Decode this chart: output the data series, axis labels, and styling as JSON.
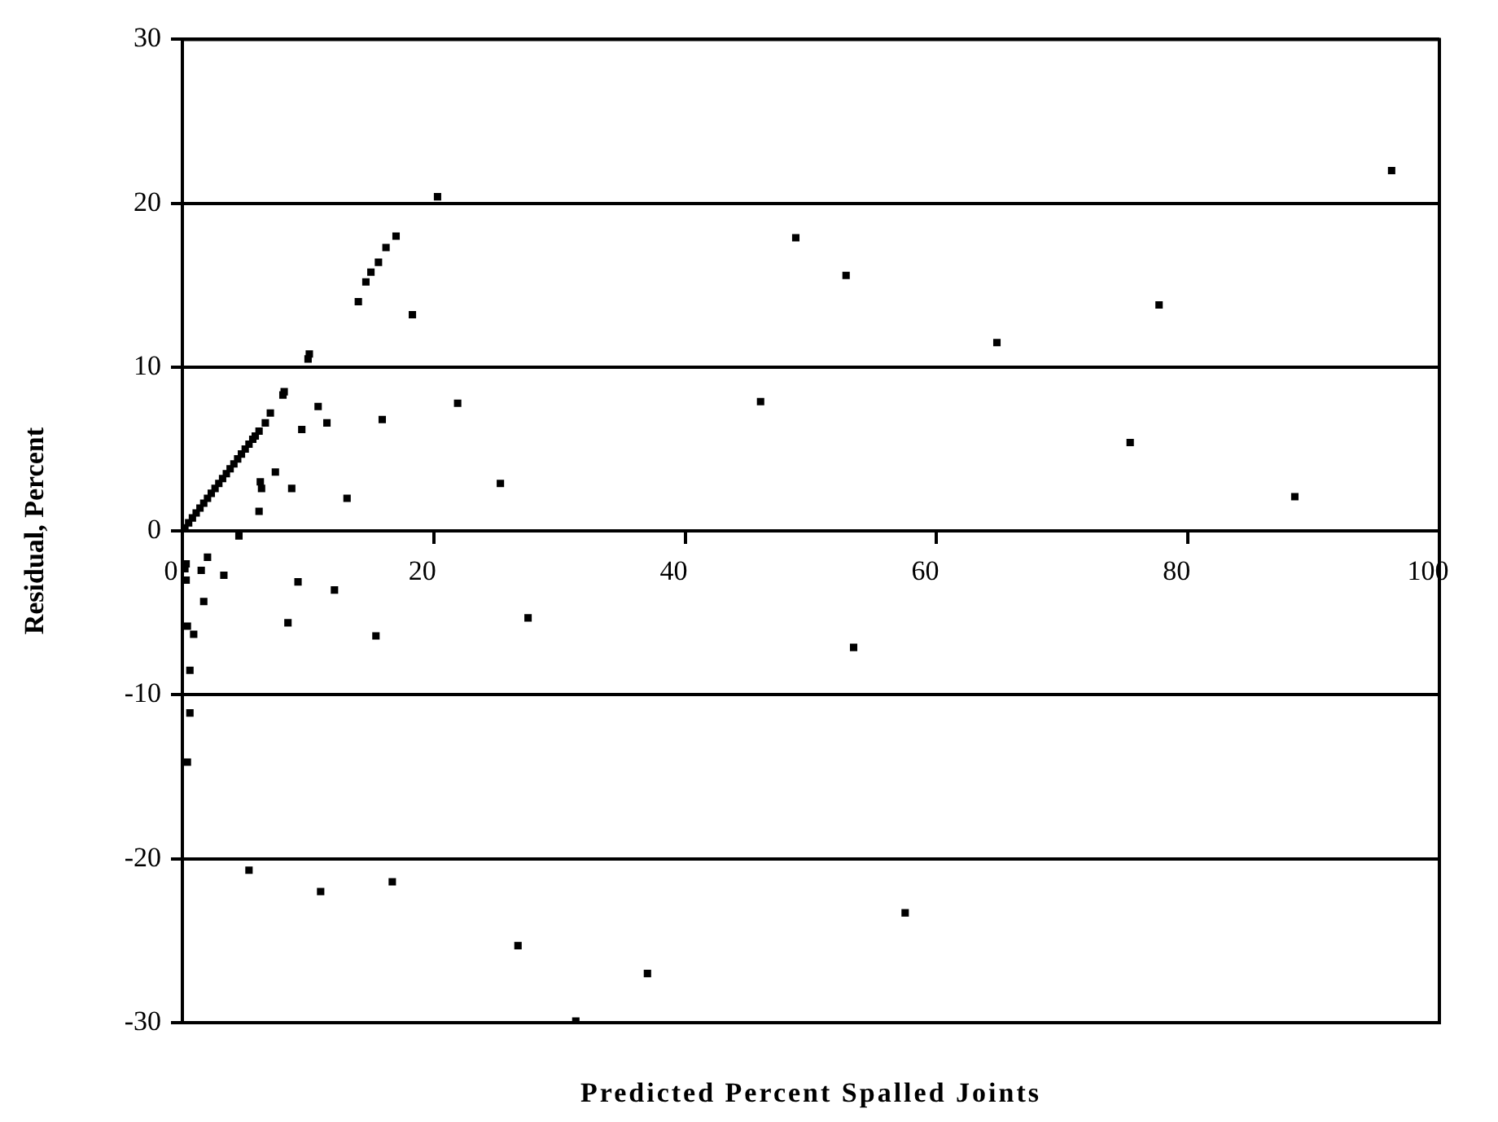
{
  "chart_data": {
    "type": "scatter",
    "xlabel": "Predicted Percent Spalled Joints",
    "ylabel": "Residual, Percent",
    "xlim": [
      0,
      100
    ],
    "xticks": [
      0,
      20,
      40,
      60,
      80,
      100
    ],
    "ylim": [
      -30,
      30
    ],
    "yticks": [
      -30,
      -20,
      -10,
      0,
      10,
      20,
      30
    ],
    "grid": "y",
    "legend": false,
    "marker": "square",
    "series": [
      {
        "color": "#000000",
        "x": [
          0.2,
          0.5,
          0.8,
          1.1,
          1.4,
          1.7,
          2.0,
          2.3,
          2.6,
          2.9,
          3.2,
          3.5,
          3.8,
          4.1,
          4.4,
          4.7,
          5.0,
          5.3,
          5.6,
          5.8,
          6.6,
          7.0,
          8.0,
          8.1,
          10.0,
          10.1,
          14.0,
          14.6,
          15.0,
          15.6,
          16.2,
          17.0,
          20.3,
          18.3,
          21.9,
          15.9,
          10.8,
          11.5,
          9.5,
          6.1,
          7.4,
          6.2,
          6.3,
          8.7,
          6.1,
          13.1,
          4.5,
          96.2,
          48.8,
          52.8,
          77.7,
          64.8,
          46.0,
          75.4,
          25.3,
          88.5,
          27.5,
          53.4,
          57.5,
          26.7,
          37.0,
          31.3,
          0.2,
          0.3,
          0.3,
          2.0,
          1.5,
          3.3,
          1.7,
          0.4,
          0.9,
          0.6,
          0.6,
          0.4,
          9.2,
          12.1,
          8.4,
          15.4,
          5.3,
          11.0,
          16.7
        ],
        "values": [
          0.2,
          0.5,
          0.8,
          1.1,
          1.4,
          1.7,
          2.0,
          2.3,
          2.6,
          2.9,
          3.2,
          3.5,
          3.8,
          4.1,
          4.4,
          4.7,
          5.0,
          5.3,
          5.6,
          5.8,
          6.6,
          7.2,
          8.3,
          8.5,
          10.5,
          10.8,
          14.0,
          15.2,
          15.8,
          16.4,
          17.3,
          18.0,
          20.4,
          13.2,
          7.8,
          6.8,
          7.6,
          6.6,
          6.2,
          6.1,
          3.6,
          3.0,
          2.6,
          2.6,
          1.2,
          2.0,
          -0.3,
          22.0,
          17.9,
          15.6,
          13.8,
          11.5,
          7.9,
          5.4,
          2.9,
          2.1,
          -5.3,
          -7.1,
          -23.3,
          -25.3,
          -27.0,
          -29.9,
          -2.3,
          -2.0,
          -3.0,
          -1.6,
          -2.4,
          -2.7,
          -4.3,
          -5.8,
          -6.3,
          -8.5,
          -11.1,
          -14.1,
          -3.1,
          -3.6,
          -5.6,
          -6.4,
          -20.7,
          -22.0,
          -21.4
        ]
      }
    ]
  }
}
